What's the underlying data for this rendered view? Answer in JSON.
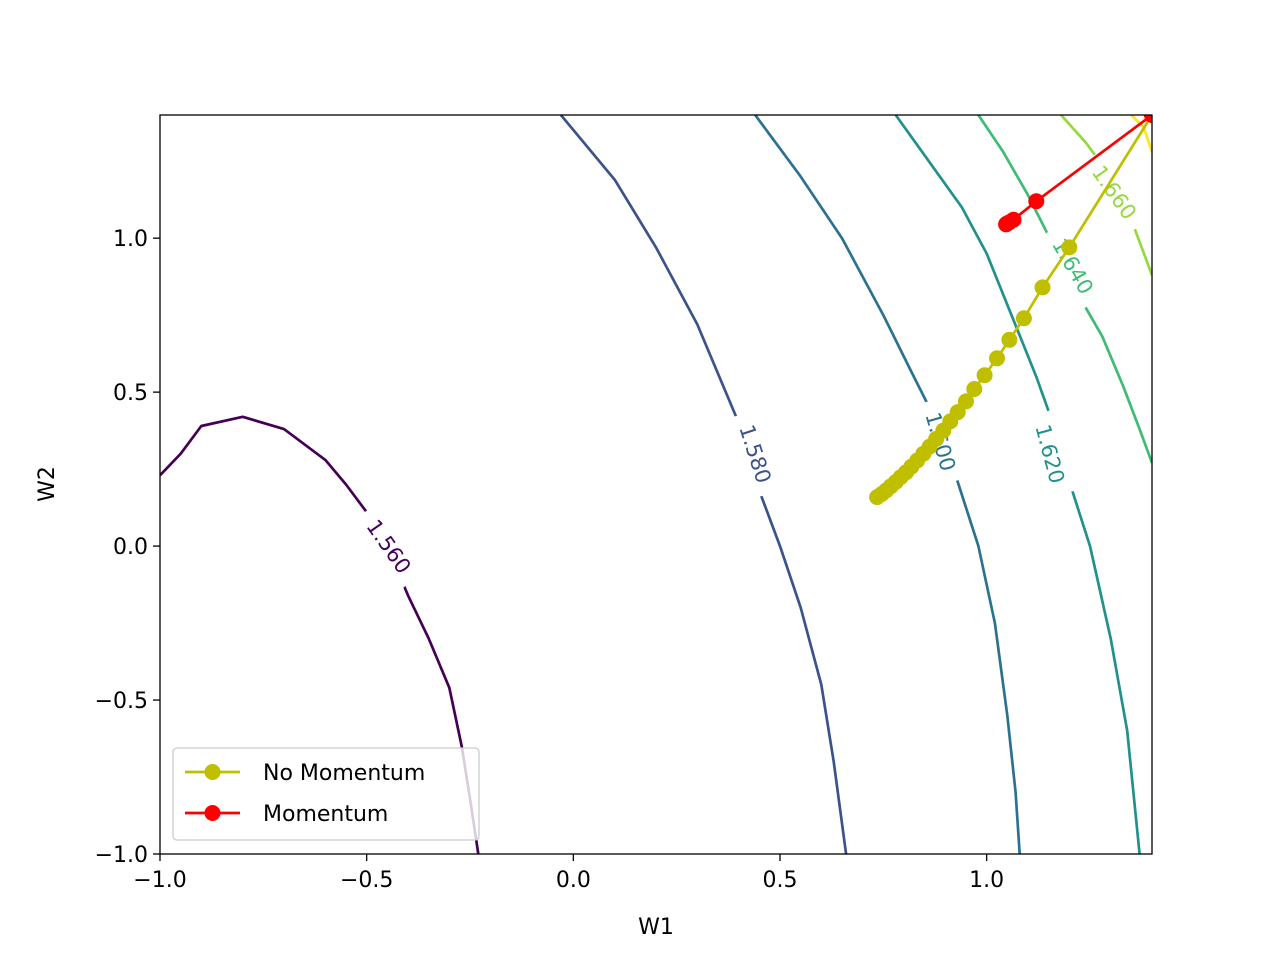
{
  "chart_data": {
    "type": "contour",
    "title": "",
    "xlabel": "W1",
    "ylabel": "W2",
    "xlim": [
      -1.0,
      1.4
    ],
    "ylim": [
      -1.0,
      1.4
    ],
    "xticks": [
      -1.0,
      -0.5,
      0.0,
      0.5,
      1.0
    ],
    "xtick_labels": [
      "−1.0",
      "−0.5",
      "0.0",
      "0.5",
      "1.0"
    ],
    "yticks": [
      -1.0,
      -0.5,
      0.0,
      0.5,
      1.0
    ],
    "ytick_labels": [
      "−1.0",
      "−0.5",
      "0.0",
      "0.5",
      "1.0"
    ],
    "grid": false,
    "legend_position": "lower-left",
    "contours": [
      {
        "level": 1.56,
        "label": "1.560",
        "color": "#440154",
        "points": [
          [
            -1.0,
            0.23
          ],
          [
            -0.95,
            0.3
          ],
          [
            -0.9,
            0.39
          ],
          [
            -0.8,
            0.42
          ],
          [
            -0.7,
            0.38
          ],
          [
            -0.6,
            0.28
          ],
          [
            -0.55,
            0.2
          ],
          [
            -0.5,
            0.11
          ],
          [
            -0.45,
            0.0
          ],
          [
            -0.4,
            -0.16
          ],
          [
            -0.35,
            -0.3
          ],
          [
            -0.3,
            -0.46
          ],
          [
            -0.27,
            -0.65
          ],
          [
            -0.25,
            -0.82
          ],
          [
            -0.23,
            -1.0
          ]
        ],
        "label_at": [
          -0.445,
          0.0
        ],
        "label_rotation": 55
      },
      {
        "level": 1.58,
        "label": "1.580",
        "color": "#3b528b",
        "points": [
          [
            -0.03,
            1.4
          ],
          [
            0.1,
            1.19
          ],
          [
            0.2,
            0.97
          ],
          [
            0.3,
            0.72
          ],
          [
            0.35,
            0.56
          ],
          [
            0.4,
            0.4
          ],
          [
            0.45,
            0.18
          ],
          [
            0.5,
            0.0
          ],
          [
            0.55,
            -0.2
          ],
          [
            0.6,
            -0.45
          ],
          [
            0.63,
            -0.7
          ],
          [
            0.66,
            -1.0
          ]
        ],
        "label_at": [
          0.442,
          0.3
        ],
        "label_rotation": 72
      },
      {
        "level": 1.6,
        "label": "1.600",
        "color": "#2c728e",
        "points": [
          [
            0.44,
            1.4
          ],
          [
            0.55,
            1.2
          ],
          [
            0.65,
            1.0
          ],
          [
            0.75,
            0.75
          ],
          [
            0.82,
            0.56
          ],
          [
            0.88,
            0.4
          ],
          [
            0.92,
            0.25
          ],
          [
            0.98,
            0.0
          ],
          [
            1.02,
            -0.25
          ],
          [
            1.05,
            -0.55
          ],
          [
            1.07,
            -0.8
          ],
          [
            1.08,
            -1.0
          ]
        ],
        "label_at": [
          0.89,
          0.34
        ],
        "label_rotation": 74
      },
      {
        "level": 1.62,
        "label": "1.620",
        "color": "#21918c",
        "points": [
          [
            0.78,
            1.4
          ],
          [
            0.86,
            1.25
          ],
          [
            0.94,
            1.1
          ],
          [
            1.0,
            0.95
          ],
          [
            1.06,
            0.75
          ],
          [
            1.12,
            0.55
          ],
          [
            1.16,
            0.4
          ],
          [
            1.2,
            0.21
          ],
          [
            1.25,
            0.0
          ],
          [
            1.3,
            -0.3
          ],
          [
            1.34,
            -0.6
          ],
          [
            1.37,
            -1.0
          ]
        ],
        "label_at": [
          1.155,
          0.3
        ],
        "label_rotation": 75
      },
      {
        "level": 1.64,
        "label": "1.640",
        "color": "#3fbc73",
        "points": [
          [
            0.98,
            1.4
          ],
          [
            1.04,
            1.28
          ],
          [
            1.1,
            1.14
          ],
          [
            1.16,
            0.98
          ],
          [
            1.22,
            0.82
          ],
          [
            1.28,
            0.68
          ],
          [
            1.33,
            0.52
          ],
          [
            1.37,
            0.38
          ],
          [
            1.4,
            0.27
          ]
        ],
        "label_at": [
          1.21,
          0.91
        ],
        "label_rotation": 60
      },
      {
        "level": 1.66,
        "label": "1.660",
        "color": "#95d840",
        "points": [
          [
            1.18,
            1.4
          ],
          [
            1.24,
            1.31
          ],
          [
            1.3,
            1.2
          ],
          [
            1.35,
            1.06
          ],
          [
            1.4,
            0.88
          ]
        ],
        "label_at": [
          1.31,
          1.15
        ],
        "label_rotation": 55
      },
      {
        "level": 1.68,
        "label": "",
        "color": "#fde725",
        "points": [
          [
            1.35,
            1.4
          ],
          [
            1.38,
            1.36
          ],
          [
            1.4,
            1.28
          ]
        ],
        "label_at": null,
        "label_rotation": 0
      }
    ],
    "series": [
      {
        "name": "No Momentum",
        "color": "#bfbf00",
        "points": [
          [
            1.4,
            1.4
          ],
          [
            1.2,
            0.97
          ],
          [
            1.135,
            0.84
          ],
          [
            1.09,
            0.74
          ],
          [
            1.055,
            0.67
          ],
          [
            1.025,
            0.61
          ],
          [
            0.995,
            0.555
          ],
          [
            0.97,
            0.51
          ],
          [
            0.95,
            0.47
          ],
          [
            0.93,
            0.435
          ],
          [
            0.912,
            0.405
          ],
          [
            0.895,
            0.375
          ],
          [
            0.878,
            0.348
          ],
          [
            0.862,
            0.323
          ],
          [
            0.847,
            0.3
          ],
          [
            0.832,
            0.278
          ],
          [
            0.818,
            0.258
          ],
          [
            0.805,
            0.24
          ],
          [
            0.792,
            0.224
          ],
          [
            0.78,
            0.208
          ],
          [
            0.768,
            0.194
          ],
          [
            0.757,
            0.181
          ],
          [
            0.746,
            0.169
          ],
          [
            0.735,
            0.159
          ]
        ]
      },
      {
        "name": "Momentum",
        "color": "#ff0000",
        "points": [
          [
            1.4,
            1.4
          ],
          [
            1.12,
            1.12
          ],
          [
            1.065,
            1.06
          ],
          [
            1.055,
            1.052
          ],
          [
            1.05,
            1.048
          ],
          [
            1.048,
            1.046
          ],
          [
            1.047,
            1.045
          ]
        ]
      }
    ]
  }
}
